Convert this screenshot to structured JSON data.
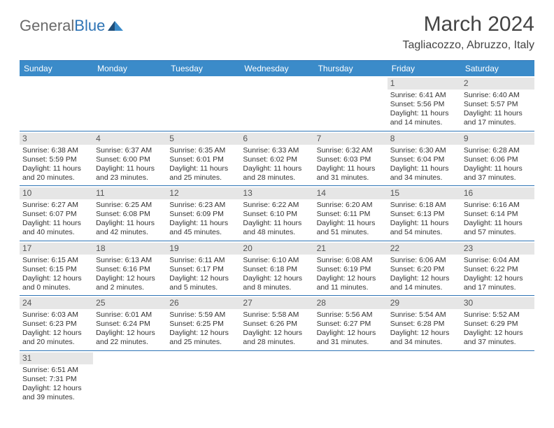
{
  "logo": {
    "text_general": "General",
    "text_blue": "Blue"
  },
  "title": "March 2024",
  "location": "Tagliacozzo, Abruzzo, Italy",
  "colors": {
    "header_bg": "#3b8bc9",
    "header_text": "#ffffff",
    "row_border": "#2e74b5",
    "daynum_bg": "#e6e6e6",
    "text": "#333333",
    "logo_gray": "#6a6a6a",
    "logo_blue": "#2e74b5"
  },
  "days_of_week": [
    "Sunday",
    "Monday",
    "Tuesday",
    "Wednesday",
    "Thursday",
    "Friday",
    "Saturday"
  ],
  "weeks": [
    [
      null,
      null,
      null,
      null,
      null,
      {
        "n": "1",
        "sr": "Sunrise: 6:41 AM",
        "ss": "Sunset: 5:56 PM",
        "d1": "Daylight: 11 hours",
        "d2": "and 14 minutes."
      },
      {
        "n": "2",
        "sr": "Sunrise: 6:40 AM",
        "ss": "Sunset: 5:57 PM",
        "d1": "Daylight: 11 hours",
        "d2": "and 17 minutes."
      }
    ],
    [
      {
        "n": "3",
        "sr": "Sunrise: 6:38 AM",
        "ss": "Sunset: 5:59 PM",
        "d1": "Daylight: 11 hours",
        "d2": "and 20 minutes."
      },
      {
        "n": "4",
        "sr": "Sunrise: 6:37 AM",
        "ss": "Sunset: 6:00 PM",
        "d1": "Daylight: 11 hours",
        "d2": "and 23 minutes."
      },
      {
        "n": "5",
        "sr": "Sunrise: 6:35 AM",
        "ss": "Sunset: 6:01 PM",
        "d1": "Daylight: 11 hours",
        "d2": "and 25 minutes."
      },
      {
        "n": "6",
        "sr": "Sunrise: 6:33 AM",
        "ss": "Sunset: 6:02 PM",
        "d1": "Daylight: 11 hours",
        "d2": "and 28 minutes."
      },
      {
        "n": "7",
        "sr": "Sunrise: 6:32 AM",
        "ss": "Sunset: 6:03 PM",
        "d1": "Daylight: 11 hours",
        "d2": "and 31 minutes."
      },
      {
        "n": "8",
        "sr": "Sunrise: 6:30 AM",
        "ss": "Sunset: 6:04 PM",
        "d1": "Daylight: 11 hours",
        "d2": "and 34 minutes."
      },
      {
        "n": "9",
        "sr": "Sunrise: 6:28 AM",
        "ss": "Sunset: 6:06 PM",
        "d1": "Daylight: 11 hours",
        "d2": "and 37 minutes."
      }
    ],
    [
      {
        "n": "10",
        "sr": "Sunrise: 6:27 AM",
        "ss": "Sunset: 6:07 PM",
        "d1": "Daylight: 11 hours",
        "d2": "and 40 minutes."
      },
      {
        "n": "11",
        "sr": "Sunrise: 6:25 AM",
        "ss": "Sunset: 6:08 PM",
        "d1": "Daylight: 11 hours",
        "d2": "and 42 minutes."
      },
      {
        "n": "12",
        "sr": "Sunrise: 6:23 AM",
        "ss": "Sunset: 6:09 PM",
        "d1": "Daylight: 11 hours",
        "d2": "and 45 minutes."
      },
      {
        "n": "13",
        "sr": "Sunrise: 6:22 AM",
        "ss": "Sunset: 6:10 PM",
        "d1": "Daylight: 11 hours",
        "d2": "and 48 minutes."
      },
      {
        "n": "14",
        "sr": "Sunrise: 6:20 AM",
        "ss": "Sunset: 6:11 PM",
        "d1": "Daylight: 11 hours",
        "d2": "and 51 minutes."
      },
      {
        "n": "15",
        "sr": "Sunrise: 6:18 AM",
        "ss": "Sunset: 6:13 PM",
        "d1": "Daylight: 11 hours",
        "d2": "and 54 minutes."
      },
      {
        "n": "16",
        "sr": "Sunrise: 6:16 AM",
        "ss": "Sunset: 6:14 PM",
        "d1": "Daylight: 11 hours",
        "d2": "and 57 minutes."
      }
    ],
    [
      {
        "n": "17",
        "sr": "Sunrise: 6:15 AM",
        "ss": "Sunset: 6:15 PM",
        "d1": "Daylight: 12 hours",
        "d2": "and 0 minutes."
      },
      {
        "n": "18",
        "sr": "Sunrise: 6:13 AM",
        "ss": "Sunset: 6:16 PM",
        "d1": "Daylight: 12 hours",
        "d2": "and 2 minutes."
      },
      {
        "n": "19",
        "sr": "Sunrise: 6:11 AM",
        "ss": "Sunset: 6:17 PM",
        "d1": "Daylight: 12 hours",
        "d2": "and 5 minutes."
      },
      {
        "n": "20",
        "sr": "Sunrise: 6:10 AM",
        "ss": "Sunset: 6:18 PM",
        "d1": "Daylight: 12 hours",
        "d2": "and 8 minutes."
      },
      {
        "n": "21",
        "sr": "Sunrise: 6:08 AM",
        "ss": "Sunset: 6:19 PM",
        "d1": "Daylight: 12 hours",
        "d2": "and 11 minutes."
      },
      {
        "n": "22",
        "sr": "Sunrise: 6:06 AM",
        "ss": "Sunset: 6:20 PM",
        "d1": "Daylight: 12 hours",
        "d2": "and 14 minutes."
      },
      {
        "n": "23",
        "sr": "Sunrise: 6:04 AM",
        "ss": "Sunset: 6:22 PM",
        "d1": "Daylight: 12 hours",
        "d2": "and 17 minutes."
      }
    ],
    [
      {
        "n": "24",
        "sr": "Sunrise: 6:03 AM",
        "ss": "Sunset: 6:23 PM",
        "d1": "Daylight: 12 hours",
        "d2": "and 20 minutes."
      },
      {
        "n": "25",
        "sr": "Sunrise: 6:01 AM",
        "ss": "Sunset: 6:24 PM",
        "d1": "Daylight: 12 hours",
        "d2": "and 22 minutes."
      },
      {
        "n": "26",
        "sr": "Sunrise: 5:59 AM",
        "ss": "Sunset: 6:25 PM",
        "d1": "Daylight: 12 hours",
        "d2": "and 25 minutes."
      },
      {
        "n": "27",
        "sr": "Sunrise: 5:58 AM",
        "ss": "Sunset: 6:26 PM",
        "d1": "Daylight: 12 hours",
        "d2": "and 28 minutes."
      },
      {
        "n": "28",
        "sr": "Sunrise: 5:56 AM",
        "ss": "Sunset: 6:27 PM",
        "d1": "Daylight: 12 hours",
        "d2": "and 31 minutes."
      },
      {
        "n": "29",
        "sr": "Sunrise: 5:54 AM",
        "ss": "Sunset: 6:28 PM",
        "d1": "Daylight: 12 hours",
        "d2": "and 34 minutes."
      },
      {
        "n": "30",
        "sr": "Sunrise: 5:52 AM",
        "ss": "Sunset: 6:29 PM",
        "d1": "Daylight: 12 hours",
        "d2": "and 37 minutes."
      }
    ],
    [
      {
        "n": "31",
        "sr": "Sunrise: 6:51 AM",
        "ss": "Sunset: 7:31 PM",
        "d1": "Daylight: 12 hours",
        "d2": "and 39 minutes."
      },
      null,
      null,
      null,
      null,
      null,
      null
    ]
  ]
}
